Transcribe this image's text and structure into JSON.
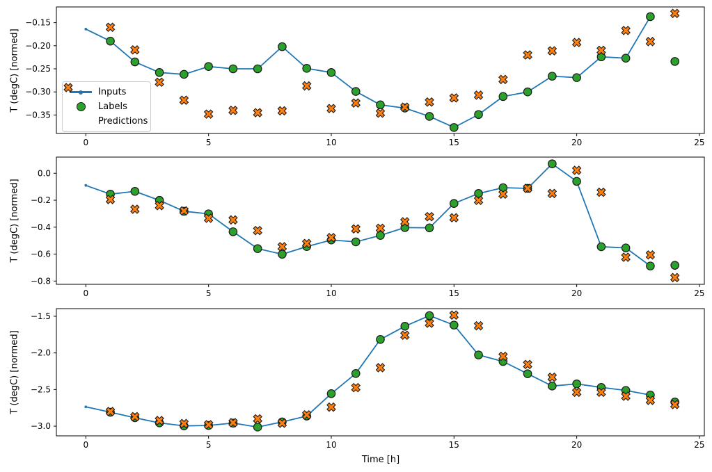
{
  "figure": {
    "xlabel": "Time [h]",
    "ylabel": "T (degC) [normed]",
    "background": "#ffffff",
    "spine_color": "#000000",
    "xlim": [
      -1.2,
      25.2
    ],
    "xticks": [
      0,
      5,
      10,
      15,
      20,
      25
    ],
    "xtick_labels": [
      "0",
      "5",
      "10",
      "15",
      "20",
      "25"
    ],
    "legend": {
      "items": [
        {
          "label": "Inputs",
          "marker": "line-with-dot",
          "color": "#1f77b4"
        },
        {
          "label": "Labels",
          "marker": "circle",
          "color": "#2ca02c"
        },
        {
          "label": "Predictions",
          "marker": "x-cross",
          "color": "#ff7f0e"
        }
      ]
    }
  },
  "chart_data": [
    {
      "type": "line",
      "title": "",
      "ylabel": "T (degC) [normed]",
      "ylim": [
        -0.39,
        -0.116
      ],
      "yticks": [
        -0.15,
        -0.2,
        -0.25,
        -0.3,
        -0.35
      ],
      "ytick_labels": [
        "−0.15",
        "−0.20",
        "−0.25",
        "−0.30",
        "−0.35"
      ],
      "series": [
        {
          "name": "Inputs",
          "style": "line",
          "color": "#1f77b4",
          "x": [
            0,
            1,
            2,
            3,
            4,
            5,
            6,
            7,
            8,
            9,
            10,
            11,
            12,
            13,
            14,
            15,
            16,
            17,
            18,
            19,
            20,
            21,
            22,
            23
          ],
          "y": [
            -0.164,
            -0.19,
            -0.235,
            -0.258,
            -0.262,
            -0.245,
            -0.25,
            -0.25,
            -0.202,
            -0.249,
            -0.258,
            -0.299,
            -0.328,
            -0.335,
            -0.353,
            -0.377,
            -0.349,
            -0.31,
            -0.3,
            -0.266,
            -0.269,
            -0.224,
            -0.227,
            -0.137
          ]
        },
        {
          "name": "Labels",
          "style": "circle",
          "color": "#2ca02c",
          "x": [
            1,
            2,
            3,
            4,
            5,
            6,
            7,
            8,
            9,
            10,
            11,
            12,
            13,
            14,
            15,
            16,
            17,
            18,
            19,
            20,
            21,
            22,
            23,
            24
          ],
          "y": [
            -0.19,
            -0.235,
            -0.258,
            -0.262,
            -0.245,
            -0.25,
            -0.25,
            -0.202,
            -0.249,
            -0.258,
            -0.299,
            -0.328,
            -0.335,
            -0.353,
            -0.377,
            -0.349,
            -0.31,
            -0.3,
            -0.266,
            -0.269,
            -0.224,
            -0.227,
            -0.137,
            -0.234
          ]
        },
        {
          "name": "Predictions",
          "style": "x-cross",
          "color": "#ff7f0e",
          "x": [
            1,
            2,
            3,
            4,
            5,
            6,
            7,
            8,
            9,
            10,
            11,
            12,
            13,
            14,
            15,
            16,
            17,
            18,
            19,
            20,
            21,
            22,
            23,
            24
          ],
          "y": [
            -0.16,
            -0.209,
            -0.279,
            -0.318,
            -0.348,
            -0.34,
            -0.345,
            -0.341,
            -0.287,
            -0.336,
            -0.324,
            -0.346,
            -0.333,
            -0.322,
            -0.313,
            -0.307,
            -0.273,
            -0.22,
            -0.211,
            -0.193,
            -0.21,
            -0.167,
            -0.191,
            -0.13
          ]
        }
      ]
    },
    {
      "type": "line",
      "title": "",
      "ylabel": "T (degC) [normed]",
      "ylim": [
        -0.824,
        0.12
      ],
      "yticks": [
        0.0,
        -0.2,
        -0.4,
        -0.6,
        -0.8
      ],
      "ytick_labels": [
        "0.0",
        "−0.2",
        "−0.4",
        "−0.6",
        "−0.8"
      ],
      "series": [
        {
          "name": "Inputs",
          "style": "line",
          "color": "#1f77b4",
          "x": [
            0,
            1,
            2,
            3,
            4,
            5,
            6,
            7,
            8,
            9,
            10,
            11,
            12,
            13,
            14,
            15,
            16,
            17,
            18,
            19,
            20,
            21,
            22,
            23
          ],
          "y": [
            -0.09,
            -0.155,
            -0.134,
            -0.201,
            -0.282,
            -0.301,
            -0.434,
            -0.559,
            -0.601,
            -0.544,
            -0.495,
            -0.509,
            -0.461,
            -0.403,
            -0.405,
            -0.224,
            -0.15,
            -0.107,
            -0.112,
            0.07,
            -0.06,
            -0.545,
            -0.554,
            -0.688
          ]
        },
        {
          "name": "Labels",
          "style": "circle",
          "color": "#2ca02c",
          "x": [
            1,
            2,
            3,
            4,
            5,
            6,
            7,
            8,
            9,
            10,
            11,
            12,
            13,
            14,
            15,
            16,
            17,
            18,
            19,
            20,
            21,
            22,
            23,
            24
          ],
          "y": [
            -0.155,
            -0.134,
            -0.201,
            -0.282,
            -0.301,
            -0.434,
            -0.559,
            -0.601,
            -0.544,
            -0.495,
            -0.509,
            -0.461,
            -0.403,
            -0.405,
            -0.224,
            -0.15,
            -0.107,
            -0.112,
            0.07,
            -0.06,
            -0.545,
            -0.554,
            -0.688,
            -0.683
          ]
        },
        {
          "name": "Predictions",
          "style": "x-cross",
          "color": "#ff7f0e",
          "x": [
            1,
            2,
            3,
            4,
            5,
            6,
            7,
            8,
            9,
            10,
            11,
            12,
            13,
            14,
            15,
            16,
            17,
            18,
            19,
            20,
            21,
            22,
            23,
            24
          ],
          "y": [
            -0.195,
            -0.267,
            -0.24,
            -0.279,
            -0.334,
            -0.346,
            -0.425,
            -0.545,
            -0.521,
            -0.477,
            -0.413,
            -0.408,
            -0.36,
            -0.322,
            -0.33,
            -0.201,
            -0.155,
            -0.112,
            -0.15,
            0.022,
            -0.141,
            -0.623,
            -0.606,
            -0.774
          ]
        }
      ]
    },
    {
      "type": "line",
      "title": "",
      "ylabel": "T (degC) [normed]",
      "ylim": [
        -3.132,
        -1.396
      ],
      "yticks": [
        -1.5,
        -2.0,
        -2.5,
        -3.0
      ],
      "ytick_labels": [
        "−1.5",
        "−2.0",
        "−2.5",
        "−3.0"
      ],
      "series": [
        {
          "name": "Inputs",
          "style": "line",
          "color": "#1f77b4",
          "x": [
            0,
            1,
            2,
            3,
            4,
            5,
            6,
            7,
            8,
            9,
            10,
            11,
            12,
            13,
            14,
            15,
            16,
            17,
            18,
            19,
            20,
            21,
            22,
            23
          ],
          "y": [
            -2.736,
            -2.81,
            -2.885,
            -2.955,
            -2.996,
            -2.99,
            -2.958,
            -3.012,
            -2.942,
            -2.862,
            -2.556,
            -2.281,
            -1.816,
            -1.636,
            -1.491,
            -1.62,
            -2.028,
            -2.117,
            -2.285,
            -2.452,
            -2.423,
            -2.471,
            -2.512,
            -2.575
          ]
        },
        {
          "name": "Labels",
          "style": "circle",
          "color": "#2ca02c",
          "x": [
            1,
            2,
            3,
            4,
            5,
            6,
            7,
            8,
            9,
            10,
            11,
            12,
            13,
            14,
            15,
            16,
            17,
            18,
            19,
            20,
            21,
            22,
            23,
            24
          ],
          "y": [
            -2.81,
            -2.885,
            -2.955,
            -2.996,
            -2.99,
            -2.958,
            -3.012,
            -2.942,
            -2.862,
            -2.556,
            -2.281,
            -1.816,
            -1.636,
            -1.491,
            -1.62,
            -2.028,
            -2.117,
            -2.285,
            -2.452,
            -2.423,
            -2.471,
            -2.512,
            -2.575,
            -2.67
          ]
        },
        {
          "name": "Predictions",
          "style": "x-cross",
          "color": "#ff7f0e",
          "x": [
            1,
            2,
            3,
            4,
            5,
            6,
            7,
            8,
            9,
            10,
            11,
            12,
            13,
            14,
            15,
            16,
            17,
            18,
            19,
            20,
            21,
            22,
            23,
            24
          ],
          "y": [
            -2.8,
            -2.87,
            -2.923,
            -2.964,
            -2.98,
            -2.952,
            -2.9,
            -2.96,
            -2.845,
            -2.74,
            -2.474,
            -2.202,
            -1.759,
            -1.595,
            -1.484,
            -1.63,
            -2.047,
            -2.158,
            -2.332,
            -2.537,
            -2.537,
            -2.591,
            -2.648,
            -2.705
          ]
        }
      ]
    }
  ]
}
